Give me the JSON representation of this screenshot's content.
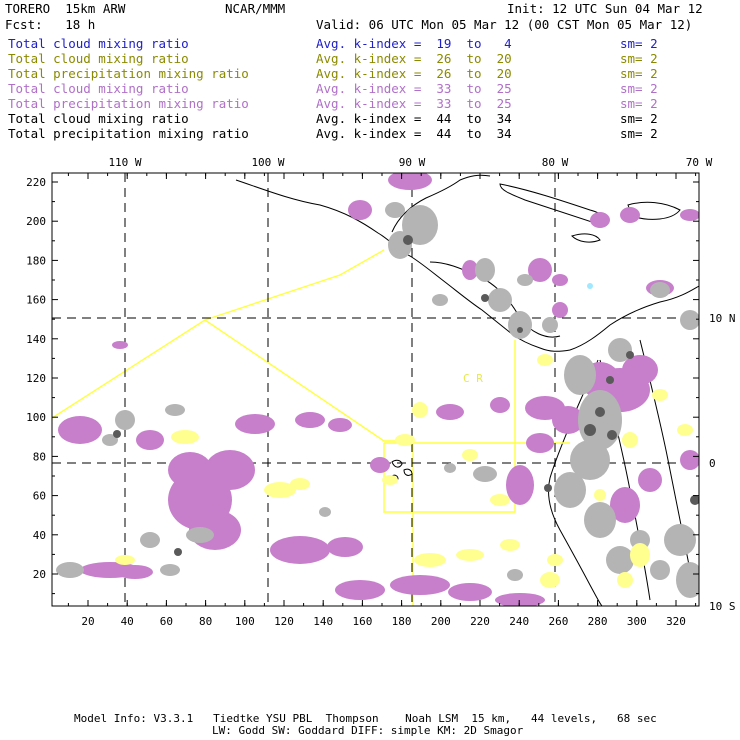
{
  "header": {
    "model": "TORERO  15km ARW",
    "org": "NCAR/MMM",
    "init": "Init: 12 UTC Sun 04 Mar 12",
    "fcst": "Fcst:   18 h",
    "valid": "Valid: 06 UTC Mon 05 Mar 12 (00 CST Mon 05 Mar 12)"
  },
  "legend": [
    {
      "field": "Total cloud mixing ratio",
      "index": "Avg. k-index =  19  to   4",
      "sm": "sm= 2",
      "color": "#2020c8"
    },
    {
      "field": "Total cloud mixing ratio",
      "index": "Avg. k-index =  26  to  20",
      "sm": "sm= 2",
      "color": "#8a8a00"
    },
    {
      "field": "Total precipitation mixing ratio",
      "index": "Avg. k-index =  26  to  20",
      "sm": "sm= 2",
      "color": "#8a8a00"
    },
    {
      "field": "Total cloud mixing ratio",
      "index": "Avg. k-index =  33  to  25",
      "sm": "sm= 2",
      "color": "#b070c8"
    },
    {
      "field": "Total precipitation mixing ratio",
      "index": "Avg. k-index =  33  to  25",
      "sm": "sm= 2",
      "color": "#b070c8"
    },
    {
      "field": "Total cloud mixing ratio",
      "index": "Avg. k-index =  44  to  34",
      "sm": "sm= 2",
      "color": "#000000"
    },
    {
      "field": "Total precipitation mixing ratio",
      "index": "Avg. k-index =  44  to  34",
      "sm": "sm= 2",
      "color": "#000000"
    }
  ],
  "axes": {
    "lon_labels": [
      "110 W",
      "100 W",
      "90 W",
      "80 W",
      "70 W"
    ],
    "lat_labels": [
      "10 N",
      "0",
      "10 S"
    ],
    "x_ticks": [
      "20",
      "40",
      "60",
      "80",
      "100",
      "120",
      "140",
      "160",
      "180",
      "200",
      "220",
      "240",
      "260",
      "280",
      "300",
      "320"
    ],
    "y_ticks": [
      "220",
      "200",
      "180",
      "160",
      "140",
      "120",
      "100",
      "80",
      "60",
      "40",
      "20"
    ]
  },
  "region_label": "C R",
  "colors": {
    "purple": "#c77fcc",
    "gray": "#b4b4b4",
    "dark_gray": "#5a5a5a",
    "yellow": "#ffff90",
    "domain_line": "#ffff40",
    "cyan": "#a0e8ff"
  },
  "footer": {
    "line1": "Model Info: V3.3.1   Tiedtke YSU PBL  Thompson    Noah LSM  15 km,   44 levels,   68 sec",
    "line2": "LW: Godd SW: Goddard DIFF: simple KM: 2D Smagor"
  }
}
